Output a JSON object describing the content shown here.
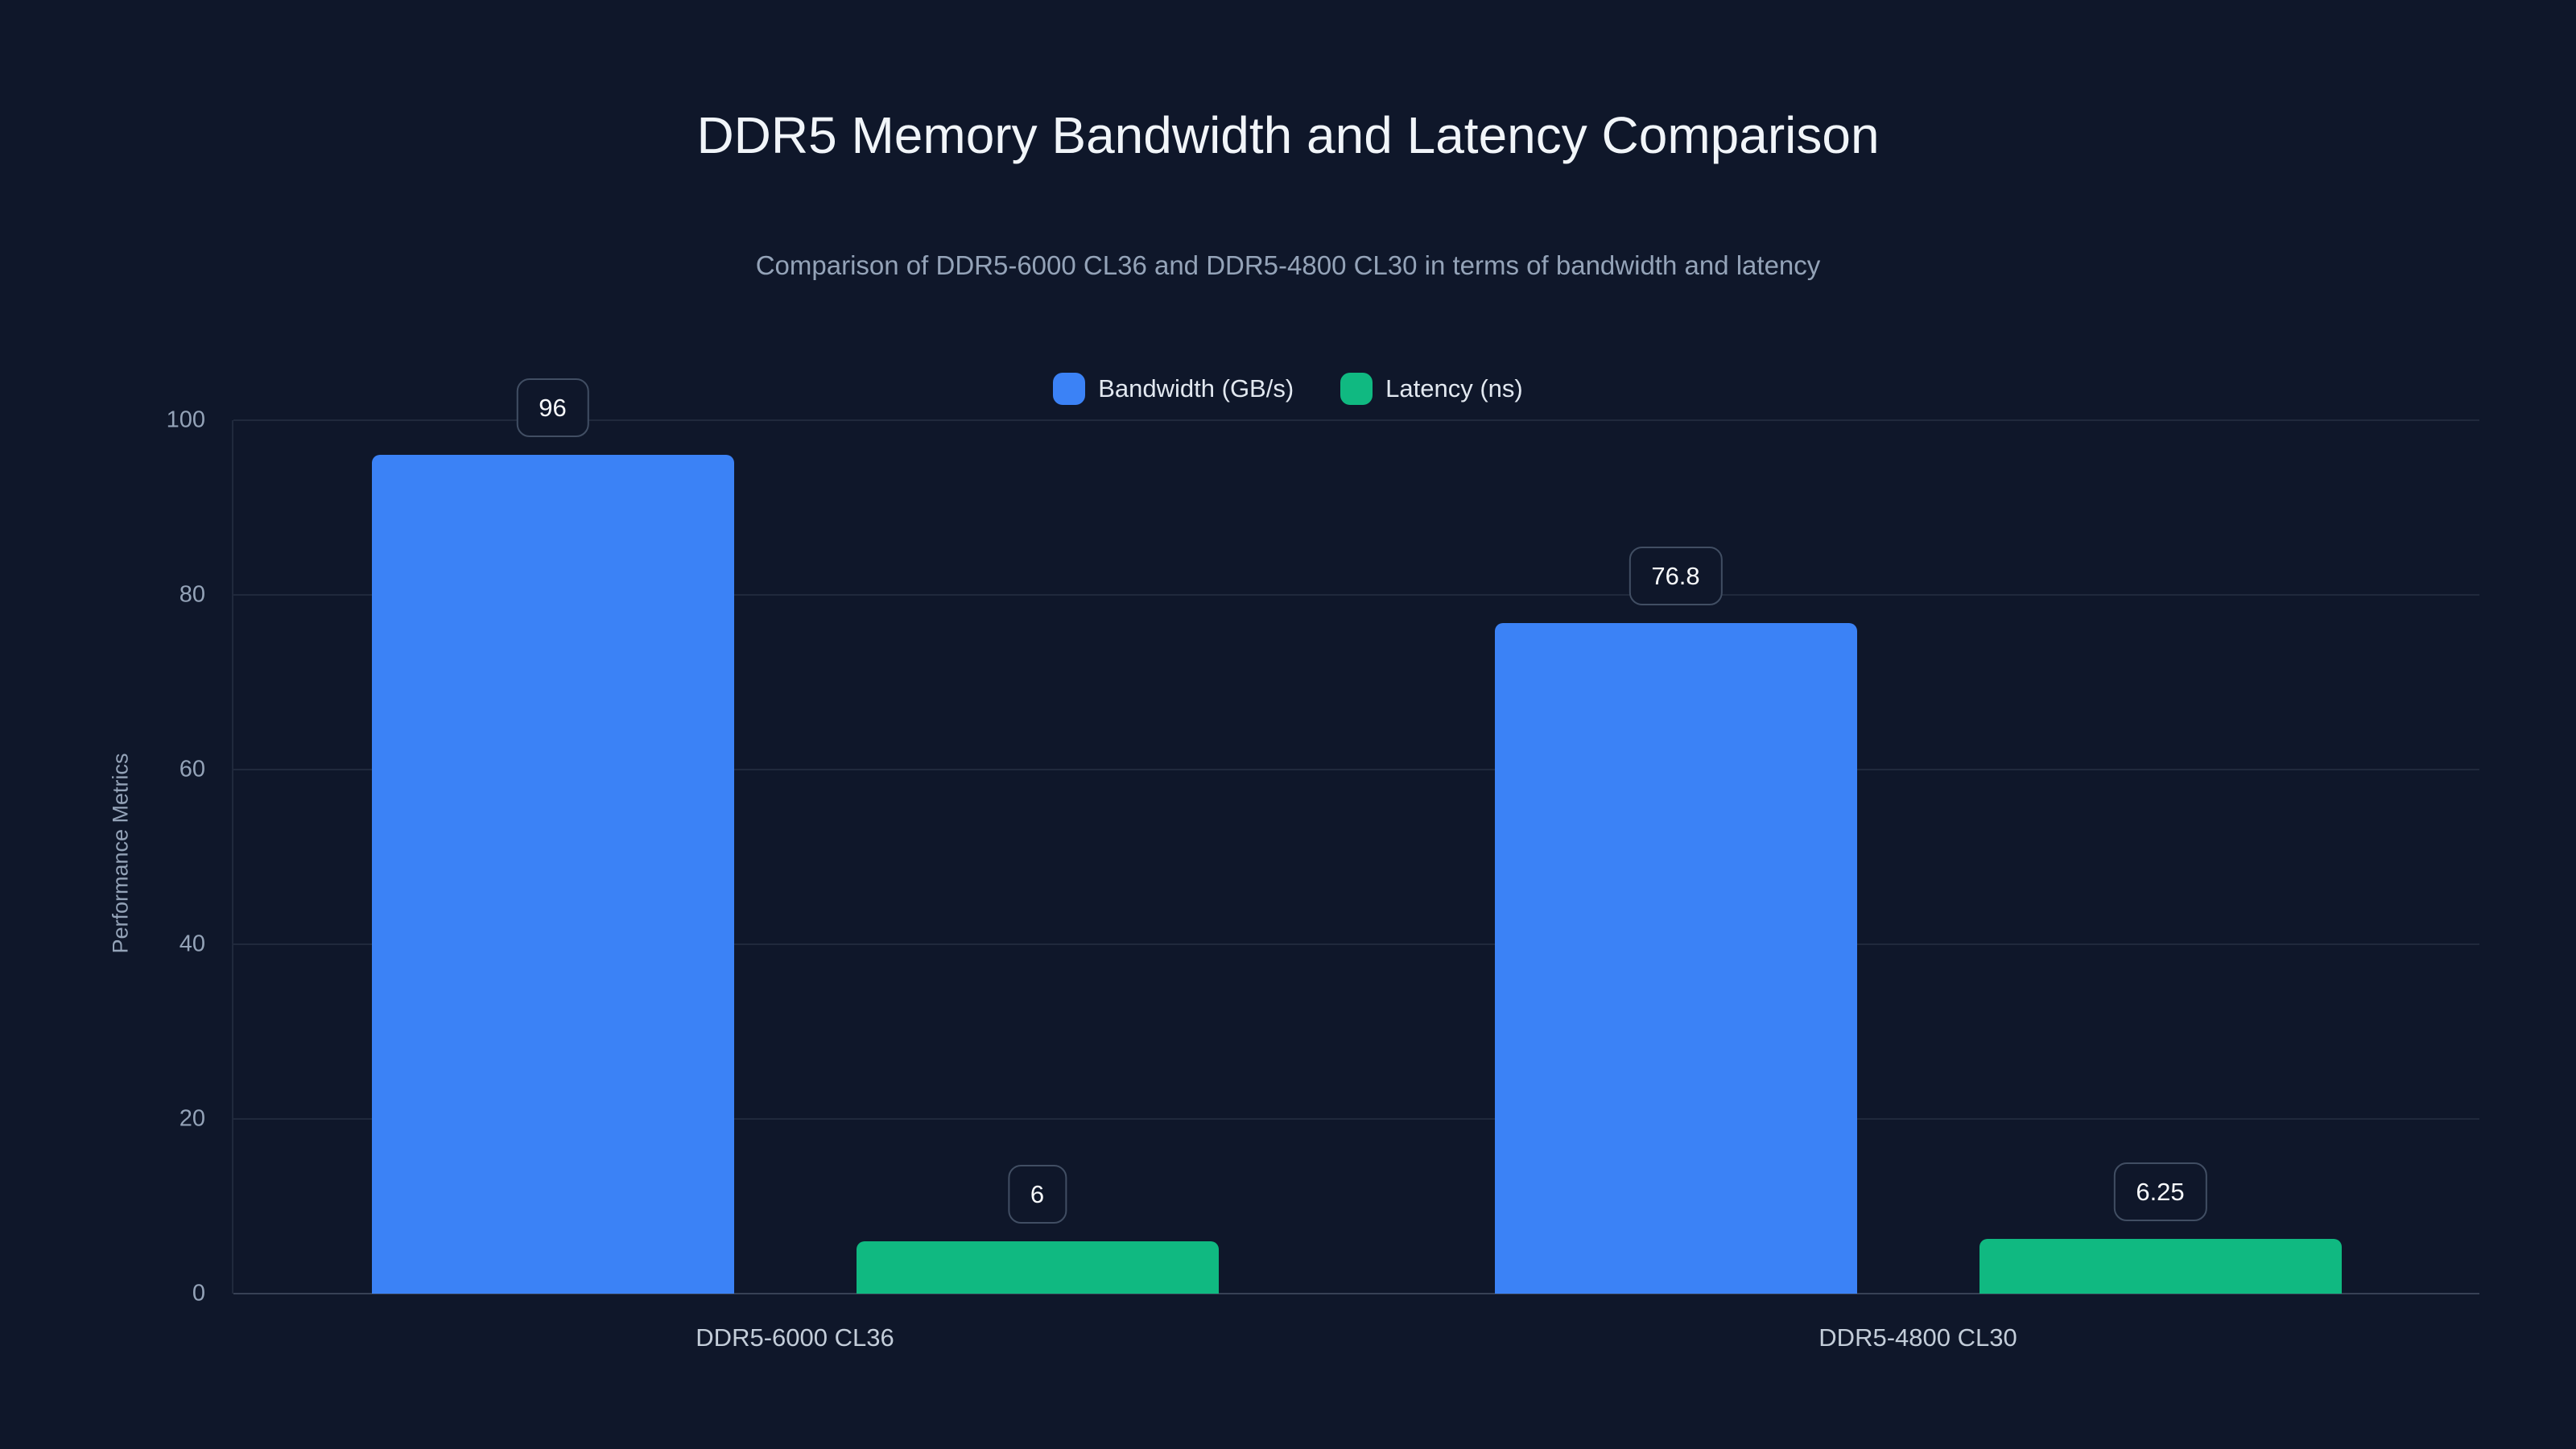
{
  "header": {
    "title": "DDR5 Memory Bandwidth and Latency Comparison",
    "subtitle": "Comparison of DDR5-6000 CL36 and DDR5-4800 CL30 in terms of bandwidth and latency"
  },
  "legend": {
    "items": [
      {
        "label": "Bandwidth (GB/s)",
        "color": "#3b82f6"
      },
      {
        "label": "Latency (ns)",
        "color": "#10b981"
      }
    ]
  },
  "chart_data": {
    "type": "bar",
    "title": "DDR5 Memory Bandwidth and Latency Comparison",
    "subtitle": "Comparison of DDR5-6000 CL36 and DDR5-4800 CL30 in terms of bandwidth and latency",
    "categories": [
      "DDR5-6000 CL36",
      "DDR5-4800 CL30"
    ],
    "series": [
      {
        "name": "Bandwidth (GB/s)",
        "color": "#3b82f6",
        "values": [
          96,
          76.8
        ],
        "value_labels": [
          "96",
          "76.8"
        ]
      },
      {
        "name": "Latency (ns)",
        "color": "#10b981",
        "values": [
          6,
          6.25
        ],
        "value_labels": [
          "6",
          "6.25"
        ]
      }
    ],
    "xlabel": "",
    "ylabel": "Performance Metrics",
    "ylim": [
      0,
      100
    ],
    "yticks": [
      0,
      20,
      40,
      60,
      80,
      100
    ],
    "grid": true,
    "legend_position": "top"
  },
  "colors": {
    "background": "#0f172a",
    "title_text": "#f1f5f9",
    "subtitle_text": "#94a3b8",
    "grid_line": "rgba(148,163,184,0.13)",
    "baseline": "rgba(148,163,184,0.30)",
    "ytick_text": "#94a3b8",
    "xtick_text": "#c3cdd9",
    "value_label_text": "#f8fafc",
    "value_label_border": "#414e63",
    "bandwidth_bar": "#3b82f6",
    "latency_bar": "#10b981"
  }
}
